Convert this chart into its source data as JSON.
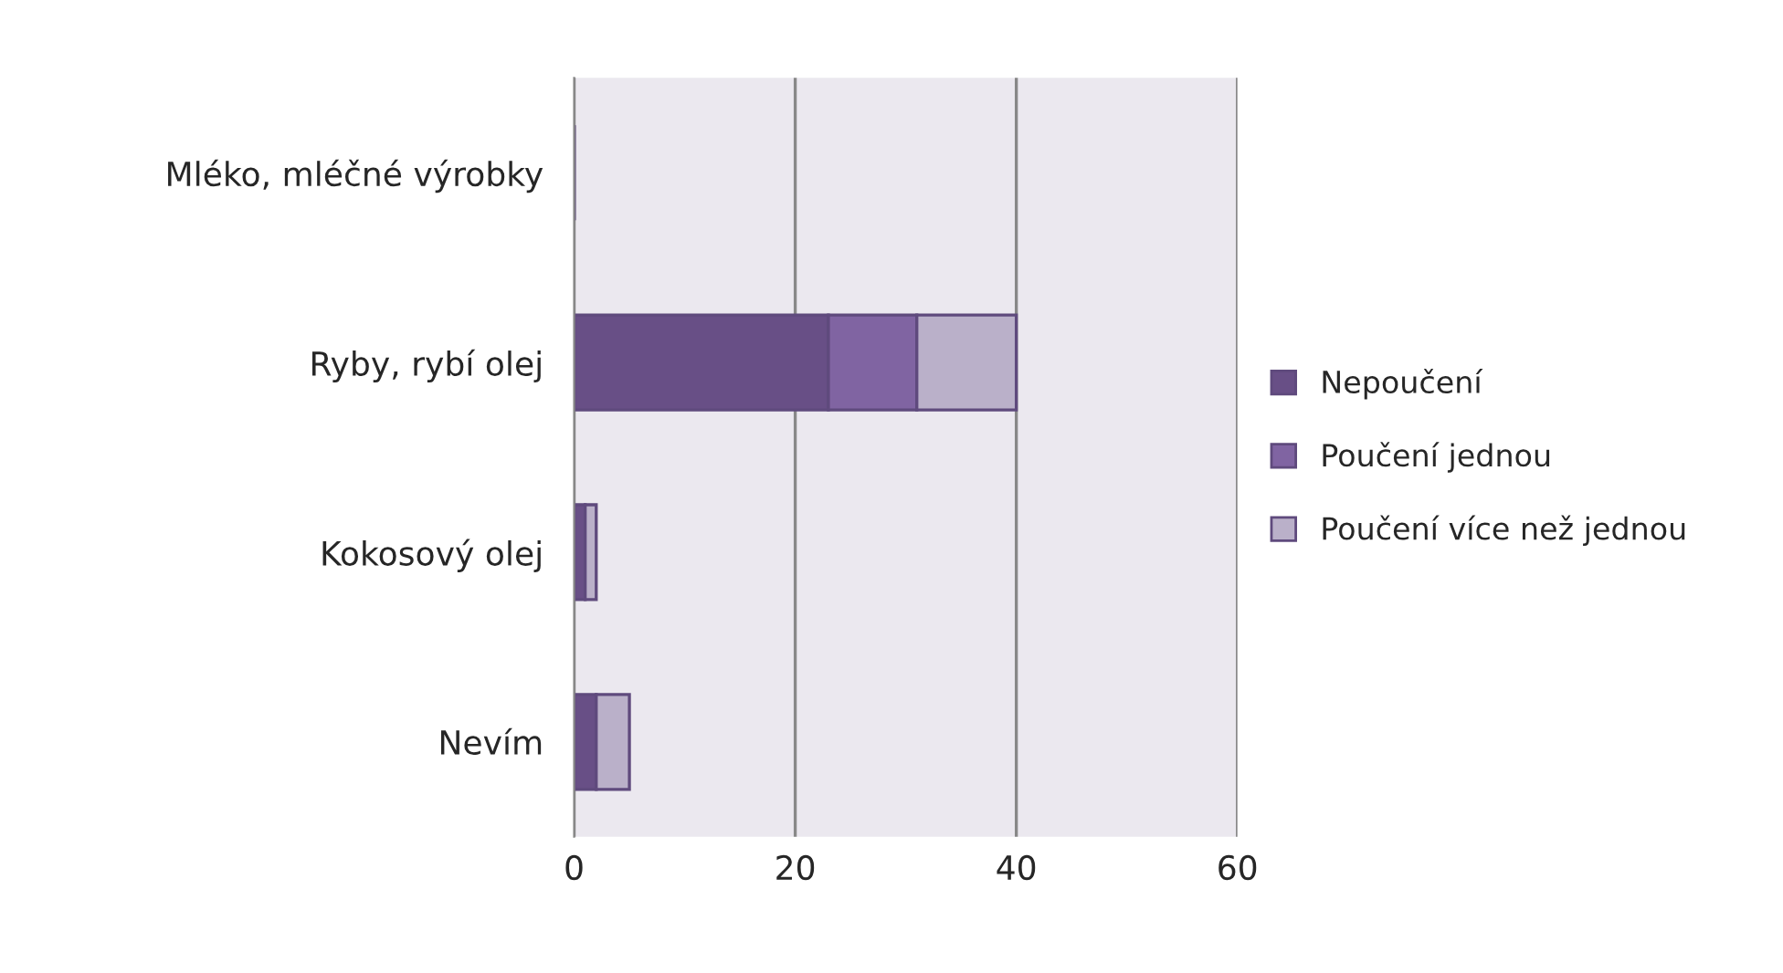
{
  "chart_data": {
    "type": "bar",
    "orientation": "horizontal",
    "stacked": true,
    "categories": [
      "Mléko, mléčné výrobky",
      "Ryby, rybí olej",
      "Kokosový olej",
      "Nevím"
    ],
    "series": [
      {
        "name": "Nepoučení",
        "color": "#684f86",
        "values": [
          0,
          23,
          1,
          2
        ]
      },
      {
        "name": "Poučení jednou",
        "color": "#8064a2",
        "values": [
          0,
          8,
          0,
          0
        ]
      },
      {
        "name": "Poučení více než jednou",
        "color": "#bab0c9",
        "values": [
          0,
          9,
          1,
          3
        ]
      }
    ],
    "xlim": [
      0,
      60
    ],
    "xticks": [
      0,
      20,
      40,
      60
    ],
    "grid": "x",
    "legend": "right"
  }
}
